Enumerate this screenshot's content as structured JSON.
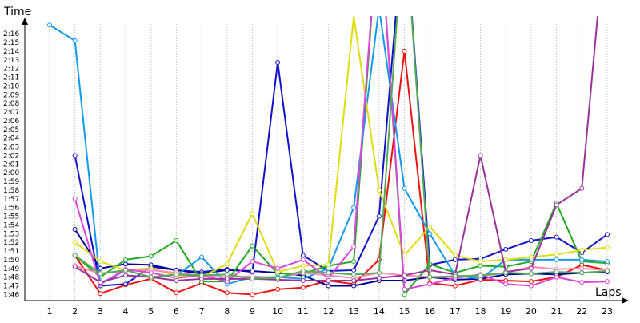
{
  "chart_data": {
    "type": "line",
    "title": "",
    "ylabel": "Time",
    "xlabel": "Laps",
    "x": [
      1,
      2,
      3,
      4,
      5,
      6,
      7,
      8,
      9,
      10,
      11,
      12,
      13,
      14,
      15,
      16,
      17,
      18,
      19,
      20,
      21,
      22,
      23
    ],
    "xticks": [
      "1",
      "2",
      "3",
      "4",
      "5",
      "6",
      "7",
      "8",
      "9",
      "10",
      "11",
      "12",
      "13",
      "14",
      "15",
      "16",
      "17",
      "18",
      "19",
      "20",
      "21",
      "22",
      "23"
    ],
    "yticks": [
      "1:46",
      "1:47",
      "1:48",
      "1:49",
      "1:50",
      "1:51",
      "1:52",
      "1:53",
      "1:54",
      "1:55",
      "1:56",
      "1:57",
      "1:58",
      "1:59",
      "2:00",
      "2:01",
      "2:02",
      "2:03",
      "2:04",
      "2:05",
      "2:06",
      "2:07",
      "2:08",
      "2:09",
      "2:10",
      "2:11",
      "2:12",
      "2:13",
      "2:14",
      "2:15",
      "2:16"
    ],
    "ylim": [
      105.3,
      137.3
    ],
    "grid": "vertical",
    "series": [
      {
        "color": "#ee1111",
        "values": [
          null,
          110.5,
          106.1,
          107.1,
          107.8,
          106.2,
          107.3,
          106.2,
          106.0,
          106.6,
          106.8,
          107.6,
          107.2,
          110.0,
          134.0,
          107.3,
          107.0,
          107.7,
          107.6,
          107.5,
          108.0,
          109.4,
          108.8
        ]
      },
      {
        "color": "#1111cc",
        "values": [
          null,
          122.0,
          107.0,
          107.2,
          109.2,
          108.8,
          108.6,
          108.9,
          108.6,
          132.7,
          110.5,
          108.7,
          108.8,
          115.0,
          150.0,
          109.4,
          110.0,
          110.1,
          111.2,
          112.2,
          112.6,
          110.8,
          112.9
        ]
      },
      {
        "color": "#000099",
        "values": [
          null,
          113.5,
          109.0,
          109.5,
          109.4,
          108.8,
          108.4,
          108.8,
          108.7,
          108.5,
          108.2,
          107.0,
          107.0,
          107.6,
          107.6,
          108.0,
          107.7,
          107.8,
          108.3,
          108.4,
          108.3,
          108.5,
          108.6
        ]
      },
      {
        "color": "#22aa22",
        "values": [
          null,
          110.5,
          108.0,
          110.0,
          110.4,
          112.2,
          107.5,
          107.5,
          111.6,
          108.4,
          108.4,
          109.3,
          109.8,
          150.0,
          106.0,
          109.5,
          108.5,
          109.3,
          109.2,
          109.8,
          116.5,
          109.8,
          109.6
        ]
      },
      {
        "color": "#1199ee",
        "values": [
          137.0,
          135.2,
          107.2,
          108.8,
          109.0,
          108.2,
          110.3,
          107.2,
          108.0,
          108.0,
          107.8,
          109.0,
          116.0,
          139.0,
          118.2,
          113.0,
          108.2,
          107.8,
          110.0,
          110.0,
          110.0,
          110.0,
          109.8
        ]
      },
      {
        "color": "#dddd11",
        "values": [
          null,
          112.0,
          109.8,
          108.8,
          109.0,
          108.2,
          108.0,
          109.5,
          115.3,
          108.6,
          109.3,
          109.4,
          138.0,
          118.0,
          110.5,
          113.8,
          110.5,
          109.8,
          110.0,
          110.3,
          110.6,
          111.1,
          111.4
        ]
      },
      {
        "color": "#ff88bb",
        "values": [
          null,
          109.3,
          108.4,
          108.7,
          108.8,
          108.5,
          108.2,
          108.0,
          108.1,
          107.9,
          108.5,
          108.2,
          107.9,
          108.5,
          108.2,
          108.0,
          108.0,
          108.1,
          108.5,
          109.2,
          108.9,
          109.0,
          108.8
        ]
      },
      {
        "color": "#dd44dd",
        "values": [
          null,
          117.0,
          107.2,
          108.9,
          108.5,
          107.9,
          108.2,
          107.5,
          109.8,
          109.0,
          110.0,
          107.9,
          111.5,
          150.0,
          106.6,
          107.2,
          107.9,
          108.3,
          107.2,
          107.0,
          108.0,
          107.4,
          107.5
        ]
      },
      {
        "color": "#993399",
        "values": [
          null,
          109.2,
          107.4,
          108.2,
          108.0,
          107.6,
          107.8,
          107.8,
          107.8,
          107.7,
          107.6,
          107.6,
          107.6,
          107.9,
          108.2,
          108.8,
          108.3,
          122.0,
          108.6,
          109.0,
          116.3,
          118.2,
          150.0
        ]
      },
      {
        "color": "#55aa55",
        "values": [
          null,
          110.5,
          108.4,
          108.8,
          108.0,
          108.3,
          108.2,
          108.3,
          107.8,
          107.9,
          108.7,
          108.5,
          108.3,
          108.5,
          150.0,
          108.0,
          108.1,
          108.2,
          108.5,
          108.4,
          108.6,
          108.5,
          108.7
        ]
      }
    ]
  }
}
